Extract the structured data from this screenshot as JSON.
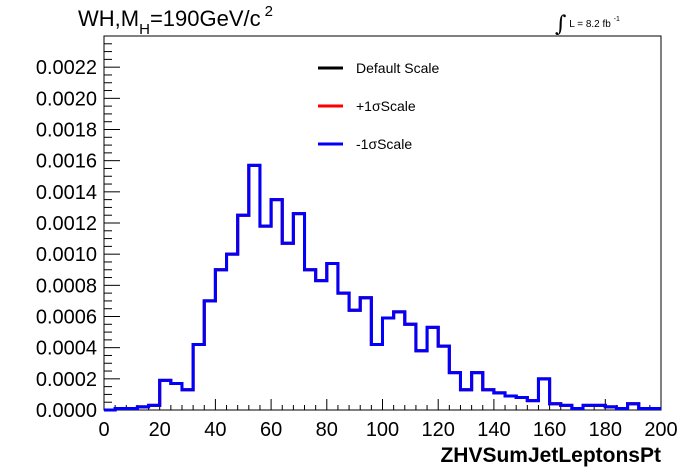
{
  "title": {
    "prefix": "WH,M",
    "subscript": "H",
    "suffix": "=190GeV/c",
    "superscript": "2"
  },
  "luminosity": {
    "integral": "∫",
    "text": "L = 8.2 fb",
    "superscript": "-1"
  },
  "chart_data": {
    "type": "line",
    "title": "WH,M_H=190GeV/c^2",
    "xlabel": "ZHVSumJetLeptonsPt",
    "ylabel": "",
    "xlim": [
      0,
      200
    ],
    "ylim": [
      0,
      0.0024
    ],
    "x_ticks": [
      "0",
      "20",
      "40",
      "60",
      "80",
      "100",
      "120",
      "140",
      "160",
      "180",
      "200"
    ],
    "y_ticks": [
      "0.0000",
      "0.0002",
      "0.0004",
      "0.0006",
      "0.0008",
      "0.0010",
      "0.0012",
      "0.0014",
      "0.0016",
      "0.0018",
      "0.0020",
      "0.0022"
    ],
    "bin_edges": [
      0,
      4,
      8,
      12,
      16,
      20,
      24,
      28,
      32,
      36,
      40,
      44,
      48,
      52,
      56,
      60,
      64,
      68,
      72,
      76,
      80,
      84,
      88,
      92,
      96,
      100,
      104,
      108,
      112,
      116,
      120,
      124,
      128,
      132,
      136,
      140,
      144,
      148,
      152,
      156,
      160,
      164,
      168,
      172,
      176,
      180,
      184,
      188,
      192,
      196,
      200
    ],
    "legend_position": "top-center",
    "series": [
      {
        "name": "Default Scale",
        "color": "#000000",
        "values": [
          0.0,
          1e-05,
          1e-05,
          2e-05,
          3e-05,
          0.00019,
          0.00017,
          0.00013,
          0.00042,
          0.0007,
          0.0009,
          0.001,
          0.00125,
          0.00157,
          0.00118,
          0.00135,
          0.00107,
          0.00126,
          0.0009,
          0.00083,
          0.00094,
          0.00075,
          0.00064,
          0.00072,
          0.00042,
          0.00059,
          0.00063,
          0.00055,
          0.00038,
          0.00053,
          0.00041,
          0.00024,
          0.00013,
          0.00024,
          0.00013,
          0.00011,
          9e-05,
          8e-05,
          6e-05,
          0.0002,
          4e-05,
          3e-05,
          1e-05,
          3e-05,
          3e-05,
          2e-05,
          1e-05,
          4e-05,
          1e-05,
          1e-05
        ]
      },
      {
        "name": "+1σScale",
        "color": "#ff0000",
        "values": [
          0.0,
          1e-05,
          1e-05,
          2e-05,
          3e-05,
          0.00019,
          0.00017,
          0.00013,
          0.00042,
          0.0007,
          0.0009,
          0.001,
          0.00125,
          0.00157,
          0.00118,
          0.00135,
          0.00107,
          0.00126,
          0.0009,
          0.00083,
          0.00094,
          0.00075,
          0.00064,
          0.00072,
          0.00042,
          0.00059,
          0.00063,
          0.00055,
          0.00038,
          0.00053,
          0.00041,
          0.00024,
          0.00013,
          0.00024,
          0.00013,
          0.00011,
          9e-05,
          8e-05,
          6e-05,
          0.0002,
          4e-05,
          3e-05,
          1e-05,
          3e-05,
          3e-05,
          2e-05,
          1e-05,
          4e-05,
          1e-05,
          1e-05
        ]
      },
      {
        "name": "-1σScale",
        "color": "#0000ff",
        "values": [
          0.0,
          1e-05,
          1e-05,
          2e-05,
          3e-05,
          0.00019,
          0.00017,
          0.00013,
          0.00042,
          0.0007,
          0.0009,
          0.001,
          0.00125,
          0.00157,
          0.00118,
          0.00135,
          0.00107,
          0.00126,
          0.0009,
          0.00083,
          0.00094,
          0.00075,
          0.00064,
          0.00072,
          0.00042,
          0.00059,
          0.00063,
          0.00055,
          0.00038,
          0.00053,
          0.00041,
          0.00024,
          0.00013,
          0.00024,
          0.00013,
          0.00011,
          9e-05,
          8e-05,
          6e-05,
          0.0002,
          4e-05,
          3e-05,
          1e-05,
          3e-05,
          3e-05,
          2e-05,
          1e-05,
          4e-05,
          1e-05,
          1e-05
        ]
      }
    ]
  }
}
